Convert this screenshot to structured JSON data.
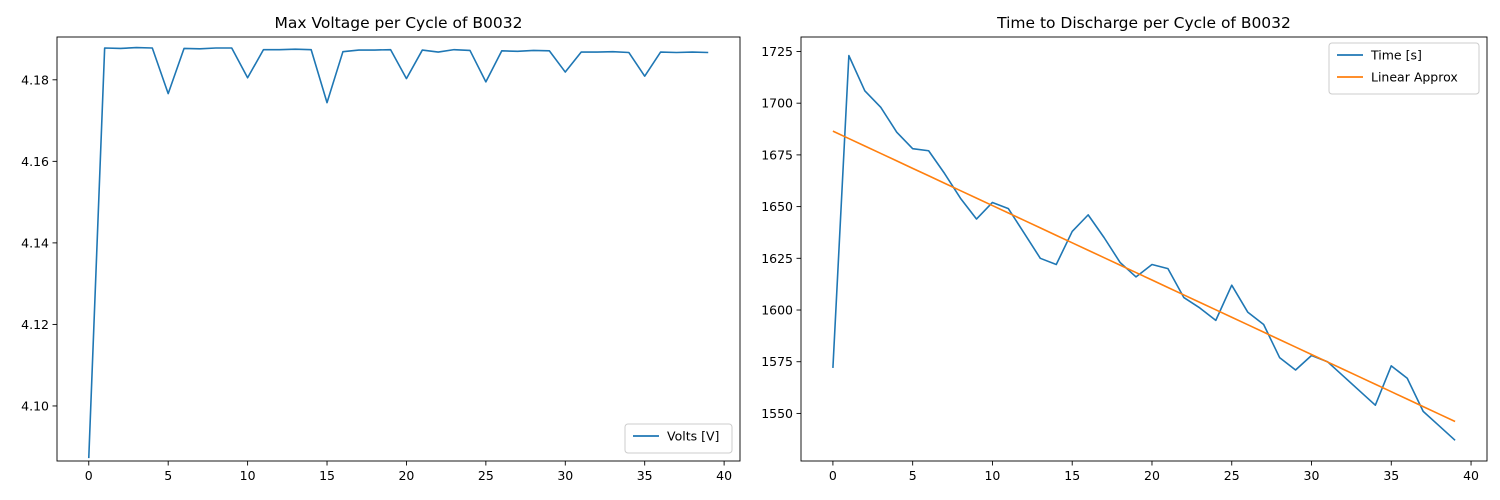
{
  "chart_data": [
    {
      "type": "line",
      "title": "Max Voltage per Cycle of B0032",
      "xlabel": "",
      "ylabel": "",
      "xlim": [
        -2,
        41
      ],
      "ylim": [
        4.0865,
        4.1905
      ],
      "xticks": [
        0,
        5,
        10,
        15,
        20,
        25,
        30,
        35,
        40
      ],
      "xtick_labels": [
        "0",
        "5",
        "10",
        "15",
        "20",
        "25",
        "30",
        "35",
        "40"
      ],
      "yticks": [
        4.1,
        4.12,
        4.14,
        4.16,
        4.18
      ],
      "ytick_labels": [
        "4.10",
        "4.12",
        "4.14",
        "4.16",
        "4.18"
      ],
      "grid": false,
      "legend_position": "lower-right",
      "x": [
        0,
        1,
        2,
        3,
        4,
        5,
        6,
        7,
        8,
        9,
        10,
        11,
        12,
        13,
        14,
        15,
        16,
        17,
        18,
        19,
        20,
        21,
        22,
        23,
        24,
        25,
        26,
        27,
        28,
        29,
        30,
        31,
        32,
        33,
        34,
        35,
        36,
        37,
        38,
        39
      ],
      "series": [
        {
          "name": "Volts [V]",
          "color": "#1f77b4",
          "values": [
            4.0872,
            4.1878,
            4.1877,
            4.1879,
            4.1878,
            4.1766,
            4.1877,
            4.1876,
            4.1878,
            4.1878,
            4.1805,
            4.1874,
            4.1874,
            4.1875,
            4.1874,
            4.1744,
            4.1869,
            4.1873,
            4.1873,
            4.1874,
            4.1803,
            4.1873,
            4.1868,
            4.1874,
            4.1872,
            4.1795,
            4.1871,
            4.187,
            4.1872,
            4.1871,
            4.1819,
            4.1868,
            4.1868,
            4.1869,
            4.1867,
            4.1809,
            4.1868,
            4.1867,
            4.1868,
            4.1867
          ]
        }
      ]
    },
    {
      "type": "line",
      "title": "Time to Discharge per Cycle of B0032",
      "xlabel": "",
      "ylabel": "",
      "xlim": [
        -2,
        41
      ],
      "ylim": [
        1527,
        1732
      ],
      "xticks": [
        0,
        5,
        10,
        15,
        20,
        25,
        30,
        35,
        40
      ],
      "xtick_labels": [
        "0",
        "5",
        "10",
        "15",
        "20",
        "25",
        "30",
        "35",
        "40"
      ],
      "yticks": [
        1550,
        1575,
        1600,
        1625,
        1650,
        1675,
        1700,
        1725
      ],
      "ytick_labels": [
        "1550",
        "1575",
        "1600",
        "1625",
        "1650",
        "1675",
        "1700",
        "1725"
      ],
      "grid": false,
      "legend_position": "upper-right",
      "x": [
        0,
        1,
        2,
        3,
        4,
        5,
        6,
        7,
        8,
        9,
        10,
        11,
        12,
        13,
        14,
        15,
        16,
        17,
        18,
        19,
        20,
        21,
        22,
        23,
        24,
        25,
        26,
        27,
        28,
        29,
        30,
        31,
        32,
        33,
        34,
        35,
        36,
        37,
        38,
        39
      ],
      "series": [
        {
          "name": "Time [s]",
          "color": "#1f77b4",
          "values": [
            1572,
            1723,
            1706,
            1698,
            1686,
            1678,
            1677,
            1666,
            1654,
            1644,
            1652,
            1649,
            1637,
            1625,
            1622,
            1638,
            1646,
            1635,
            1623,
            1616,
            1622,
            1620,
            1606,
            1601,
            1595,
            1612,
            1599,
            1593,
            1577,
            1571,
            1578,
            1575,
            1568,
            1561,
            1554,
            1573,
            1567,
            1551,
            1544,
            1537
          ]
        },
        {
          "name": "Linear Approx",
          "color": "#ff7f0e",
          "values": [
            1686.5,
            1682.9,
            1679.3,
            1675.7,
            1672.1,
            1668.5,
            1664.9,
            1661.3,
            1657.7,
            1654.1,
            1650.5,
            1646.9,
            1643.3,
            1639.7,
            1636.1,
            1632.5,
            1628.9,
            1625.3,
            1621.7,
            1618.1,
            1614.5,
            1610.9,
            1607.3,
            1603.7,
            1600.1,
            1596.5,
            1592.9,
            1589.3,
            1585.7,
            1582.1,
            1578.5,
            1574.9,
            1571.3,
            1567.7,
            1564.1,
            1560.5,
            1556.9,
            1553.3,
            1549.7,
            1546.1
          ]
        }
      ]
    }
  ]
}
